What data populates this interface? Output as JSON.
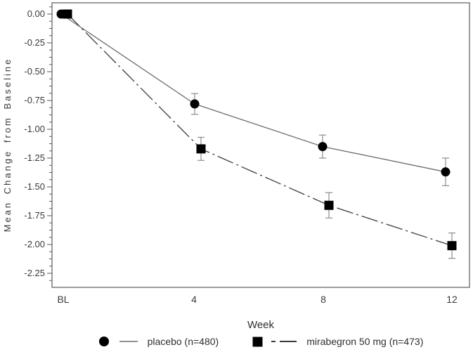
{
  "chart_data": {
    "type": "line",
    "title": "",
    "xlabel": "Week",
    "ylabel": "Mean Change from Baseline",
    "x_categories": [
      "BL",
      "4",
      "8",
      "12"
    ],
    "x_tick_labels": [
      "BL",
      "4",
      "8",
      "12"
    ],
    "y_tick_labels": [
      "0.00",
      "-0.25",
      "-0.50",
      "-0.75",
      "-1.00",
      "-1.25",
      "-1.50",
      "-1.75",
      "-2.00",
      "-2.25"
    ],
    "ylim": [
      -2.25,
      0.0
    ],
    "y_tick_step": 0.25,
    "y_minor_ticks_per_major": 3,
    "grid": false,
    "legend_position": "bottom-center",
    "series": [
      {
        "name": "placebo (n=480)",
        "marker": "circle",
        "line_style": "solid",
        "values": [
          0.0,
          -0.78,
          -1.15,
          -1.37
        ],
        "error": [
          0,
          0.09,
          0.1,
          0.12
        ]
      },
      {
        "name": "mirabegron 50 mg (n=473)",
        "marker": "square",
        "line_style": "dash-dot",
        "values": [
          0.0,
          -1.17,
          -1.66,
          -2.01
        ],
        "error": [
          0,
          0.1,
          0.11,
          0.11
        ]
      }
    ],
    "colors": {
      "marker": "#000000",
      "placebo_line": "#6e6e6e",
      "mirabegron_line": "#3c3c3c",
      "error_bar": "#8c8c8c",
      "frame": "#5a5a5a",
      "tick": "#5a5a5a",
      "text": "#333333",
      "background": "#ffffff"
    }
  }
}
